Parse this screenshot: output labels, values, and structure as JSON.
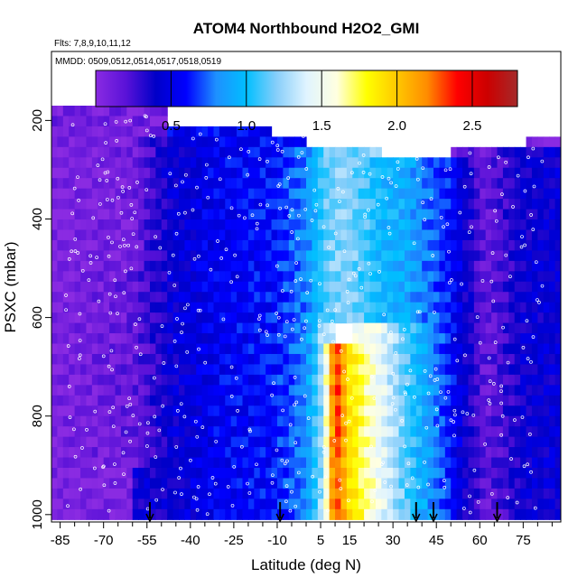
{
  "chart_data": {
    "type": "heatmap",
    "title": "ATOM4 Northbound H2O2_GMI",
    "flights_label": "Flts: 7,8,9,10,11,12",
    "dates_label": "MMDD: 0509,0512,0514,0517,0518,0519",
    "xlabel": "Latitude (deg N)",
    "ylabel": "PSXC (mbar)",
    "xlim": [
      -88,
      88
    ],
    "ylim": [
      1015,
      60
    ],
    "y_reversed": true,
    "x_major_ticks": [
      -85,
      -70,
      -55,
      -40,
      -25,
      -10,
      5,
      15,
      30,
      45,
      60,
      75
    ],
    "x_minor_step": 5,
    "y_ticks": [
      200,
      400,
      600,
      800,
      1000
    ],
    "colorbar": {
      "min": 0.0,
      "max": 2.8,
      "ticks": [
        0.5,
        1.0,
        1.5,
        2.0,
        2.5
      ],
      "tick_labels": [
        "0.5",
        "1.0",
        "1.5",
        "2.0",
        "2.5"
      ],
      "colors": [
        "#8a2be2",
        "#5a12d8",
        "#0000c8",
        "#0000ff",
        "#1e90ff",
        "#00bfff",
        "#87cefa",
        "#e0f4ff",
        "#ffffe0",
        "#ffff00",
        "#ffc800",
        "#ff8c00",
        "#ff0000",
        "#cc0000",
        "#a52a2a"
      ]
    },
    "profile_latitudes": [
      -54,
      -9,
      38,
      44,
      66
    ],
    "grid": false,
    "field": [
      {
        "lat": -88,
        "p": [
          [
            230,
            1015,
            0.05
          ]
        ]
      },
      {
        "lat": -60,
        "p": [
          [
            170,
            500,
            0.1
          ],
          [
            500,
            900,
            0.15
          ]
        ]
      },
      {
        "lat": -48,
        "p": [
          [
            240,
            1000,
            0.4
          ]
        ]
      },
      {
        "lat": -30,
        "p": [
          [
            220,
            1000,
            0.55
          ]
        ]
      },
      {
        "lat": -12,
        "p": [
          [
            230,
            1015,
            0.6
          ]
        ]
      },
      {
        "lat": 0,
        "p": [
          [
            250,
            1015,
            0.8
          ]
        ]
      },
      {
        "lat": 6,
        "p": [
          [
            260,
            600,
            1.1
          ],
          [
            600,
            1000,
            1.3
          ]
        ]
      },
      {
        "lat": 10,
        "p": [
          [
            260,
            600,
            1.2
          ],
          [
            650,
            1000,
            2.4
          ]
        ]
      },
      {
        "lat": 15,
        "p": [
          [
            260,
            600,
            1.2
          ],
          [
            650,
            1000,
            1.9
          ]
        ]
      },
      {
        "lat": 25,
        "p": [
          [
            270,
            600,
            1.0
          ],
          [
            600,
            1000,
            1.5
          ]
        ]
      },
      {
        "lat": 35,
        "p": [
          [
            270,
            600,
            0.9
          ],
          [
            600,
            1000,
            1.1
          ]
        ]
      },
      {
        "lat": 50,
        "p": [
          [
            280,
            1000,
            0.6
          ]
        ]
      },
      {
        "lat": 62,
        "p": [
          [
            260,
            1000,
            0.15
          ]
        ]
      },
      {
        "lat": 75,
        "p": [
          [
            260,
            1000,
            0.4
          ]
        ]
      }
    ]
  }
}
